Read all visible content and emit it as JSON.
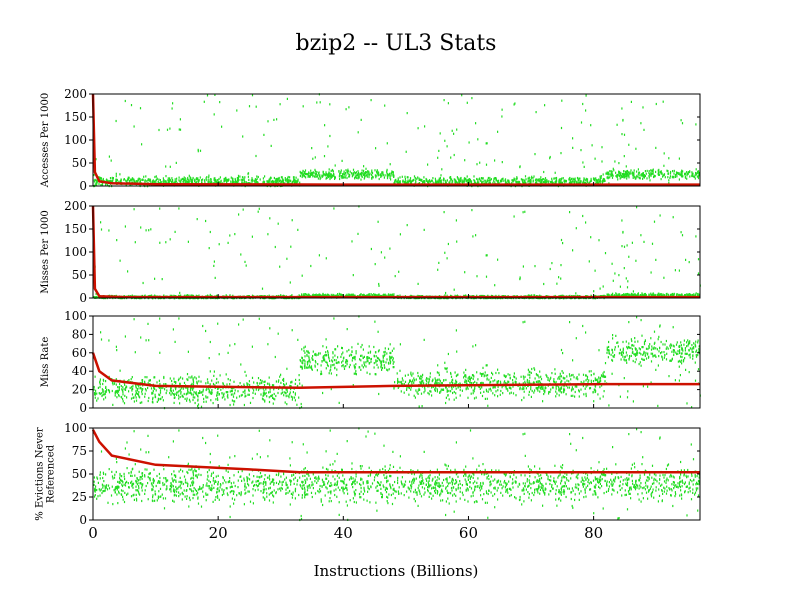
{
  "chart_data": {
    "type": "scatter",
    "title": "bzip2 -- UL3  Stats",
    "xlabel": "Instructions (Billions)",
    "xlim": [
      0,
      97
    ],
    "xticks": [
      "0",
      "20",
      "40",
      "60",
      "80"
    ],
    "panels": [
      {
        "ylabel": [
          "Accesses Per 1000"
        ],
        "ylim": [
          0,
          200
        ],
        "yticks": [
          "0",
          "50",
          "100",
          "150",
          "200"
        ],
        "series": [
          {
            "color": "#22dd22",
            "segments": [
              [
                0,
                33,
                10
              ],
              [
                33,
                48,
                25
              ],
              [
                48,
                82,
                10
              ],
              [
                82,
                97,
                25
              ]
            ],
            "spread": 8
          },
          {
            "color": "#cc1100",
            "avg": [
              [
                0,
                200
              ],
              [
                0.3,
                30
              ],
              [
                1,
                10
              ],
              [
                3,
                6
              ],
              [
                10,
                4
              ],
              [
                40,
                3
              ],
              [
                97,
                3
              ]
            ]
          }
        ]
      },
      {
        "ylabel": [
          "Misses Per 1000"
        ],
        "ylim": [
          0,
          200
        ],
        "yticks": [
          "0",
          "50",
          "100",
          "150",
          "200"
        ],
        "series": [
          {
            "color": "#22dd22",
            "segments": [
              [
                0,
                33,
                2
              ],
              [
                33,
                48,
                5
              ],
              [
                48,
                82,
                2
              ],
              [
                82,
                97,
                6
              ]
            ],
            "spread": 3
          },
          {
            "color": "#cc1100",
            "avg": [
              [
                0,
                200
              ],
              [
                0.3,
                20
              ],
              [
                1,
                4
              ],
              [
                5,
                2
              ],
              [
                97,
                2
              ]
            ]
          }
        ]
      },
      {
        "ylabel": [
          "Miss Rate"
        ],
        "ylim": [
          0,
          100
        ],
        "yticks": [
          "0",
          "20",
          "40",
          "60",
          "80",
          "100"
        ],
        "series": [
          {
            "color": "#22dd22",
            "segments": [
              [
                0,
                33,
                20
              ],
              [
                33,
                48,
                52
              ],
              [
                48,
                82,
                27
              ],
              [
                82,
                97,
                62
              ]
            ],
            "spread": 12
          },
          {
            "color": "#cc1100",
            "avg": [
              [
                0,
                60
              ],
              [
                1,
                40
              ],
              [
                3,
                30
              ],
              [
                10,
                24
              ],
              [
                33,
                22
              ],
              [
                48,
                24
              ],
              [
                82,
                26
              ],
              [
                97,
                26
              ]
            ]
          }
        ]
      },
      {
        "ylabel": [
          "% Evictions Never",
          "Referenced"
        ],
        "ylim": [
          0,
          100
        ],
        "yticks": [
          "0",
          "25",
          "50",
          "75",
          "100"
        ],
        "series": [
          {
            "color": "#22dd22",
            "segments": [
              [
                0,
                33,
                38
              ],
              [
                33,
                48,
                38
              ],
              [
                48,
                82,
                40
              ],
              [
                82,
                97,
                40
              ]
            ],
            "spread": 15
          },
          {
            "color": "#cc1100",
            "avg": [
              [
                0,
                98
              ],
              [
                1,
                85
              ],
              [
                3,
                70
              ],
              [
                10,
                60
              ],
              [
                25,
                55
              ],
              [
                33,
                52
              ],
              [
                97,
                52
              ]
            ]
          }
        ]
      }
    ]
  }
}
